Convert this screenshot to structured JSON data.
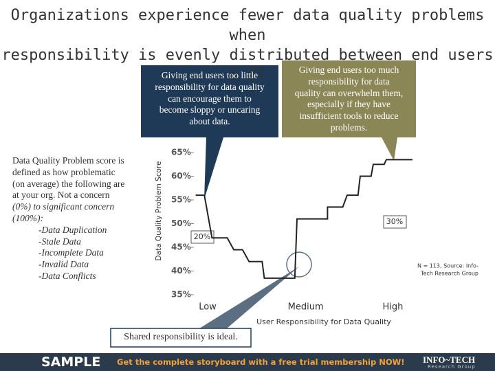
{
  "title_lines": [
    "Organizations experience fewer data quality problems when",
    "responsibility is evenly distributed between end users & IT"
  ],
  "chart_data": {
    "type": "line",
    "y_label": "Data Quality Problem Score",
    "x_label": "User Responsibility for Data Quality",
    "xlim": [
      0,
      100
    ],
    "xticks": [
      {
        "value": 6,
        "label": "Low"
      },
      {
        "value": 51,
        "label": "Medium"
      },
      {
        "value": 91,
        "label": "High"
      }
    ],
    "ylim": [
      35,
      65
    ],
    "yticks": [
      {
        "value": 35,
        "label": "35%"
      },
      {
        "value": 40,
        "label": "40%"
      },
      {
        "value": 45,
        "label": "45%"
      },
      {
        "value": 50,
        "label": "50%"
      },
      {
        "value": 55,
        "label": "55%"
      },
      {
        "value": 60,
        "label": "60%"
      },
      {
        "value": 65,
        "label": "65%"
      }
    ],
    "grid": false,
    "series": [
      {
        "color": "#222222",
        "x": [
          0.5,
          4.5,
          8,
          15,
          18,
          22,
          25,
          31,
          32,
          46,
          47,
          61,
          61,
          68,
          70,
          75,
          76,
          81,
          82,
          87,
          88,
          100
        ],
        "values": [
          56,
          56,
          47,
          47,
          44.5,
          44.5,
          42,
          42,
          38.5,
          38.5,
          51,
          51,
          53.5,
          53.5,
          56,
          56,
          60,
          60,
          62.5,
          62.5,
          63.5,
          63.5
        ]
      }
    ],
    "annotations": [
      "20%",
      "30%"
    ],
    "source": [
      "N = 113, Source: Info-",
      "Tech Research Group"
    ]
  },
  "left_note": [
    "Data Quality Problem score is",
    "defined as how problematic",
    "(on average) the following are",
    "at your org.  Not a concern",
    "(0%) to significant concern",
    "(100%):",
    "-Data Duplication",
    "-Stale Data",
    "-Incomplete Data",
    "-Invalid Data",
    "-Data Conflicts"
  ],
  "callouts": {
    "little": [
      "Giving end users too little",
      "responsibility for data quality",
      "can encourage them to",
      "become sloppy or uncaring",
      "about data."
    ],
    "much": [
      "Giving end users too much",
      "responsibility for data",
      "quality can overwhelm them,",
      "especially if they have",
      "insufficient tools to reduce",
      "problems."
    ],
    "ideal": "Shared responsibility is ideal."
  },
  "footer": {
    "sample": "SAMPLE",
    "cta": "Get the complete storyboard with a free trial membership NOW!",
    "logo": "INFO~TECH",
    "logo_sub": "Research Group"
  }
}
